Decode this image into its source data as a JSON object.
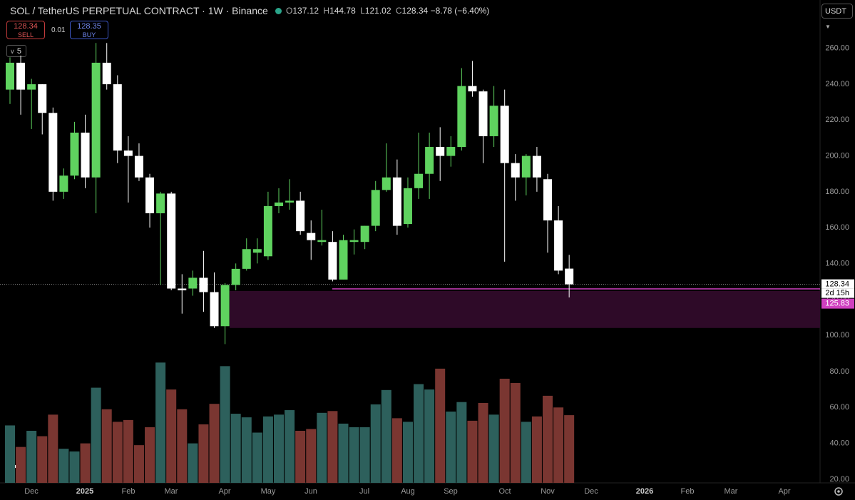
{
  "header": {
    "symbol": "SOL / TetherUS PERPETUAL CONTRACT · 1W · Binance",
    "ohlc": [
      {
        "key": "O",
        "value": "137.12"
      },
      {
        "key": "H",
        "value": "144.78"
      },
      {
        "key": "L",
        "value": "121.02"
      },
      {
        "key": "C",
        "value": "128.34"
      }
    ],
    "change": "−8.78 (−6.40%)"
  },
  "trade": {
    "sell_price": "128.34",
    "sell_label": "SELL",
    "spread": "0.01",
    "buy_price": "128.35",
    "buy_label": "BUY"
  },
  "indicator_count": "5",
  "currency": "USDT",
  "chart_data": {
    "type": "candlestick",
    "open": [
      237,
      252,
      237,
      240,
      224,
      180,
      189,
      213,
      188,
      252,
      240,
      203,
      200,
      188,
      168,
      179,
      126,
      126,
      132,
      124,
      105,
      128,
      137,
      146,
      144,
      172,
      174,
      175,
      157,
      152,
      152,
      131,
      152,
      152,
      161,
      181,
      188,
      162,
      182,
      190,
      205,
      200,
      205,
      239,
      236,
      211,
      228,
      196,
      188,
      200,
      187,
      164,
      137.12
    ],
    "high": [
      255,
      256,
      243,
      240,
      227,
      193,
      219,
      223,
      263,
      263,
      245,
      211,
      207,
      190,
      180,
      180,
      134,
      136,
      147,
      135,
      129,
      140,
      154,
      154,
      180,
      182,
      187,
      180,
      164,
      170,
      158,
      156,
      159,
      161,
      186,
      207,
      198,
      188,
      213,
      213,
      216,
      211,
      249,
      253,
      237,
      239,
      237,
      201,
      201,
      205,
      190,
      172,
      144.78
    ],
    "low": [
      229,
      223,
      215,
      212,
      175,
      176,
      187,
      182,
      168,
      237,
      196,
      174,
      186,
      160,
      128,
      125,
      112,
      122,
      113,
      104,
      95,
      125,
      136,
      140,
      142,
      168,
      170,
      156,
      142,
      150,
      130,
      131,
      145,
      148,
      158,
      180,
      156,
      160,
      176,
      176,
      186,
      194,
      203,
      233,
      196,
      205,
      141,
      175,
      178,
      180,
      146,
      134,
      121.02
    ],
    "close": [
      252,
      237,
      240,
      224,
      180,
      189,
      213,
      188,
      252,
      240,
      203,
      200,
      188,
      168,
      179,
      126,
      125,
      132,
      124,
      105,
      128,
      137,
      148,
      148,
      172,
      174,
      175,
      158,
      153,
      153,
      131,
      153,
      153,
      161,
      181,
      188,
      161,
      182,
      190,
      205,
      200,
      205,
      239,
      236,
      211,
      228,
      196,
      188,
      200,
      188,
      164,
      136,
      128.34
    ],
    "up_color": "#5fd35f",
    "down_color": "#ffffff",
    "ylim": [
      88,
      287
    ],
    "yticks": [
      {
        "value": 100,
        "label": "100.00"
      },
      {
        "value": 120,
        "label": "120.00"
      },
      {
        "value": 140,
        "label": "140.00"
      },
      {
        "value": 160,
        "label": "160.00"
      },
      {
        "value": 180,
        "label": "180.00"
      },
      {
        "value": 200,
        "label": "200.00"
      },
      {
        "value": 220,
        "label": "220.00"
      },
      {
        "value": 240,
        "label": "240.00"
      },
      {
        "value": 260,
        "label": "260.00"
      }
    ],
    "volume": {
      "values": [
        50,
        38,
        47,
        44,
        56,
        37,
        35.5,
        40,
        71,
        59,
        52,
        53,
        39,
        49,
        85,
        70,
        59,
        40,
        50.6,
        62,
        83,
        56.5,
        54.5,
        46,
        55,
        56,
        58.5,
        47,
        48,
        57,
        58,
        51,
        49,
        49,
        61.7,
        69.7,
        54,
        52,
        73,
        70,
        81.6,
        57.7,
        63,
        52.6,
        62.5,
        56,
        76,
        73.6,
        52,
        55,
        66.5,
        60,
        55.7
      ],
      "up_color": "#2d605c",
      "down_color": "#7a3631",
      "ylim": [
        18,
        88.3
      ],
      "yticks": [
        {
          "value": 20,
          "label": "20.00"
        },
        {
          "value": 40,
          "label": "40.00"
        },
        {
          "value": 60,
          "label": "60.00"
        },
        {
          "value": 80,
          "label": "80.00"
        }
      ]
    },
    "xticks": [
      "Dec",
      "2025",
      "Feb",
      "Mar",
      "Apr",
      "May",
      "Jun",
      "Jul",
      "Aug",
      "Sep",
      "Oct",
      "Nov",
      "Dec",
      "2026",
      "Feb",
      "Mar",
      "Apr"
    ],
    "price_line": {
      "value": 128.34,
      "label": "128.34",
      "countdown": "2d 15h"
    },
    "zone": {
      "top": 125.83,
      "bottom": 104,
      "label": "125.83",
      "color": "#2e0a28",
      "line_color": "#d040c0"
    }
  }
}
